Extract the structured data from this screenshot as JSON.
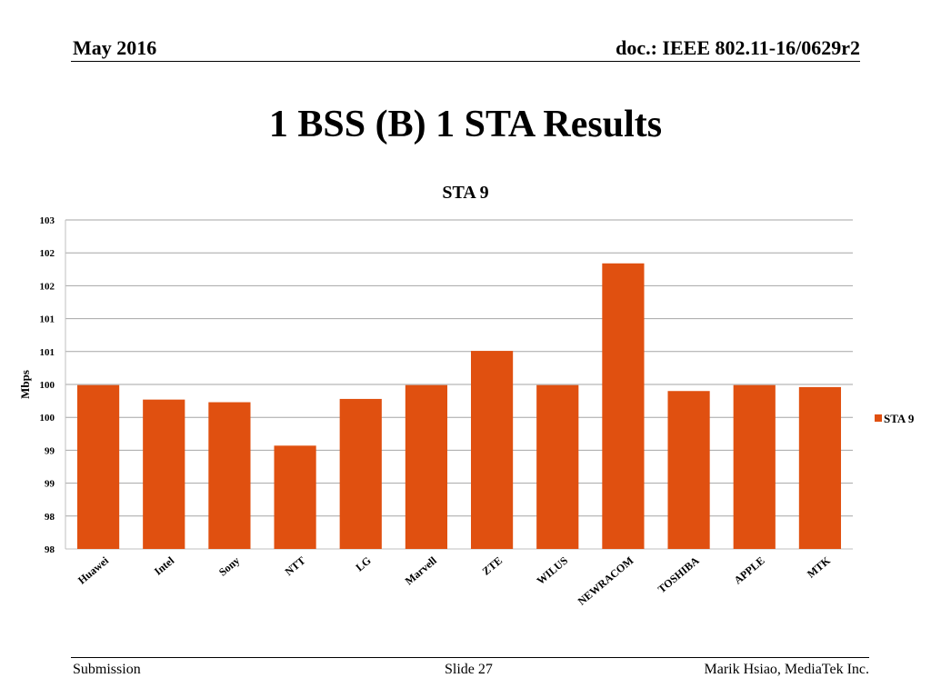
{
  "header": {
    "date": "May 2016",
    "doc": "doc.: IEEE 802.11-16/0629r2"
  },
  "slide": {
    "title": "1 BSS (B) 1 STA Results"
  },
  "footer": {
    "left": "Submission",
    "center": "Slide 27",
    "right": "Marik Hsiao, MediaTek Inc."
  },
  "chart_data": {
    "type": "bar",
    "title": "STA 9",
    "xlabel": "",
    "ylabel": "Mbps",
    "ylim": [
      97.5,
      102.5
    ],
    "ytick_labels": [
      "98",
      "98",
      "99",
      "99",
      "100",
      "100",
      "101",
      "101",
      "102",
      "102",
      "103"
    ],
    "grid": true,
    "legend_position": "right",
    "bar_color": "#e05010",
    "categories": [
      "Huawei",
      "Intel",
      "Sony",
      "NTT",
      "LG",
      "Marvell",
      "ZTE",
      "WILUS",
      "NEWRACOM",
      "TOSHIBA",
      "APPLE",
      "MTK"
    ],
    "series": [
      {
        "name": "STA 9",
        "values": [
          99.99,
          99.77,
          99.73,
          99.07,
          99.78,
          99.99,
          100.51,
          99.99,
          101.84,
          99.9,
          99.99,
          99.96
        ]
      }
    ]
  }
}
